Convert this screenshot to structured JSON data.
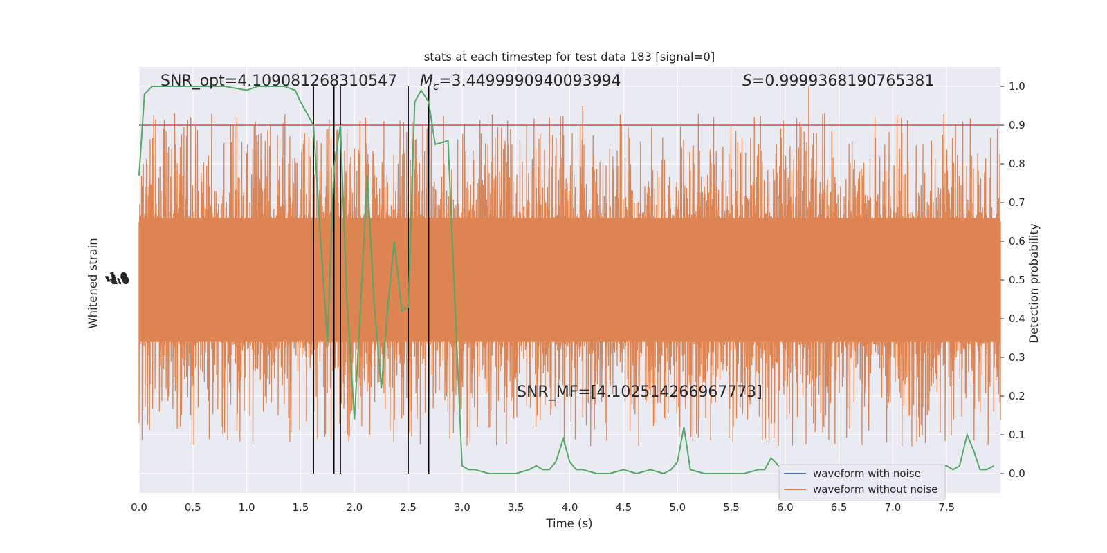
{
  "chart_data": {
    "type": "line",
    "title": "stats at each timestep for test data 183 [signal=0]",
    "xlabel": "Time (s)",
    "ylabel_left": "Whitened strain",
    "ylabel_right": "Detection probability",
    "xlim": [
      0.0,
      8.0
    ],
    "ylim_right": [
      -0.05,
      1.05
    ],
    "x_ticks": [
      "0.0",
      "0.5",
      "1.0",
      "1.5",
      "2.0",
      "2.5",
      "3.0",
      "3.5",
      "4.0",
      "4.5",
      "5.0",
      "5.5",
      "6.0",
      "6.5",
      "7.0",
      "7.5"
    ],
    "y_ticks_right": [
      "0.0",
      "0.1",
      "0.2",
      "0.3",
      "0.4",
      "0.5",
      "0.6",
      "0.7",
      "0.8",
      "0.9",
      "1.0"
    ],
    "y_ticks_left_text": "-1.0",
    "grid": true,
    "background": "#eaeaf2",
    "annotations": {
      "snr_opt": "SNR_opt=4.109081268310547",
      "mc_symbol": "M",
      "mc_sub": "c",
      "mc_value": "=3.4499990940093994",
      "s_symbol": "S",
      "s_value": "=0.9999368190765381",
      "snr_mf": "SNR_MF=[4.102514266967773]"
    },
    "threshold": 0.9,
    "vlines": [
      1.62,
      1.81,
      1.87,
      2.5,
      2.69
    ],
    "series": [
      {
        "name": "waveform with noise",
        "color": "#4c72b0",
        "values": []
      },
      {
        "name": "waveform without noise",
        "color": "#dd8452",
        "noise_band_center": 0.0,
        "spike_times": [
          0.33,
          0.48,
          0.85,
          1.08,
          1.22,
          3.45,
          4.12,
          6.22,
          7.65
        ],
        "spike_values_right_axis": [
          0.93,
          0.92,
          0.9,
          0.91,
          0.9,
          0.89,
          0.95,
          1.0,
          0.91
        ]
      },
      {
        "name": "detection probability",
        "color": "#55a868",
        "x": [
          0.0,
          0.05,
          0.12,
          0.2,
          0.4,
          0.6,
          0.8,
          1.0,
          1.1,
          1.2,
          1.35,
          1.45,
          1.5,
          1.56,
          1.62,
          1.68,
          1.75,
          1.81,
          1.87,
          1.93,
          2.0,
          2.06,
          2.12,
          2.18,
          2.25,
          2.31,
          2.37,
          2.44,
          2.5,
          2.56,
          2.62,
          2.69,
          2.75,
          2.87,
          2.94,
          3.0,
          3.06,
          3.12,
          3.25,
          3.37,
          3.5,
          3.62,
          3.69,
          3.75,
          3.81,
          3.87,
          3.94,
          4.0,
          4.06,
          4.12,
          4.25,
          4.37,
          4.5,
          4.62,
          4.75,
          4.87,
          4.94,
          5.0,
          5.06,
          5.12,
          5.25,
          5.5,
          5.62,
          5.75,
          5.81,
          5.87,
          5.94,
          6.0,
          6.25,
          6.5,
          6.75,
          7.0,
          7.25,
          7.37,
          7.5,
          7.56,
          7.62,
          7.69,
          7.75,
          7.81,
          7.87,
          7.94
        ],
        "y": [
          0.77,
          0.98,
          1.0,
          1.0,
          1.0,
          1.0,
          1.0,
          0.99,
          1.0,
          1.0,
          1.0,
          0.99,
          0.96,
          0.93,
          0.9,
          0.63,
          0.34,
          0.79,
          0.9,
          0.45,
          0.14,
          0.45,
          0.77,
          0.45,
          0.22,
          0.43,
          0.6,
          0.42,
          0.43,
          0.96,
          0.99,
          0.96,
          0.85,
          0.86,
          0.4,
          0.02,
          0.01,
          0.01,
          0.0,
          0.0,
          0.0,
          0.01,
          0.02,
          0.01,
          0.01,
          0.03,
          0.09,
          0.03,
          0.01,
          0.01,
          0.0,
          0.0,
          0.01,
          0.0,
          0.01,
          0.0,
          0.01,
          0.03,
          0.12,
          0.01,
          0.0,
          0.0,
          0.0,
          0.01,
          0.01,
          0.04,
          0.02,
          0.01,
          0.0,
          0.0,
          0.0,
          0.0,
          0.01,
          0.02,
          0.02,
          0.01,
          0.02,
          0.1,
          0.06,
          0.01,
          0.01,
          0.02
        ]
      }
    ],
    "legend": {
      "placement": "lower-right",
      "entries": [
        "waveform with noise",
        "waveform without noise"
      ]
    },
    "colors": {
      "threshold": "#c44e52",
      "vline": "#000000",
      "grid": "#ffffff"
    }
  }
}
